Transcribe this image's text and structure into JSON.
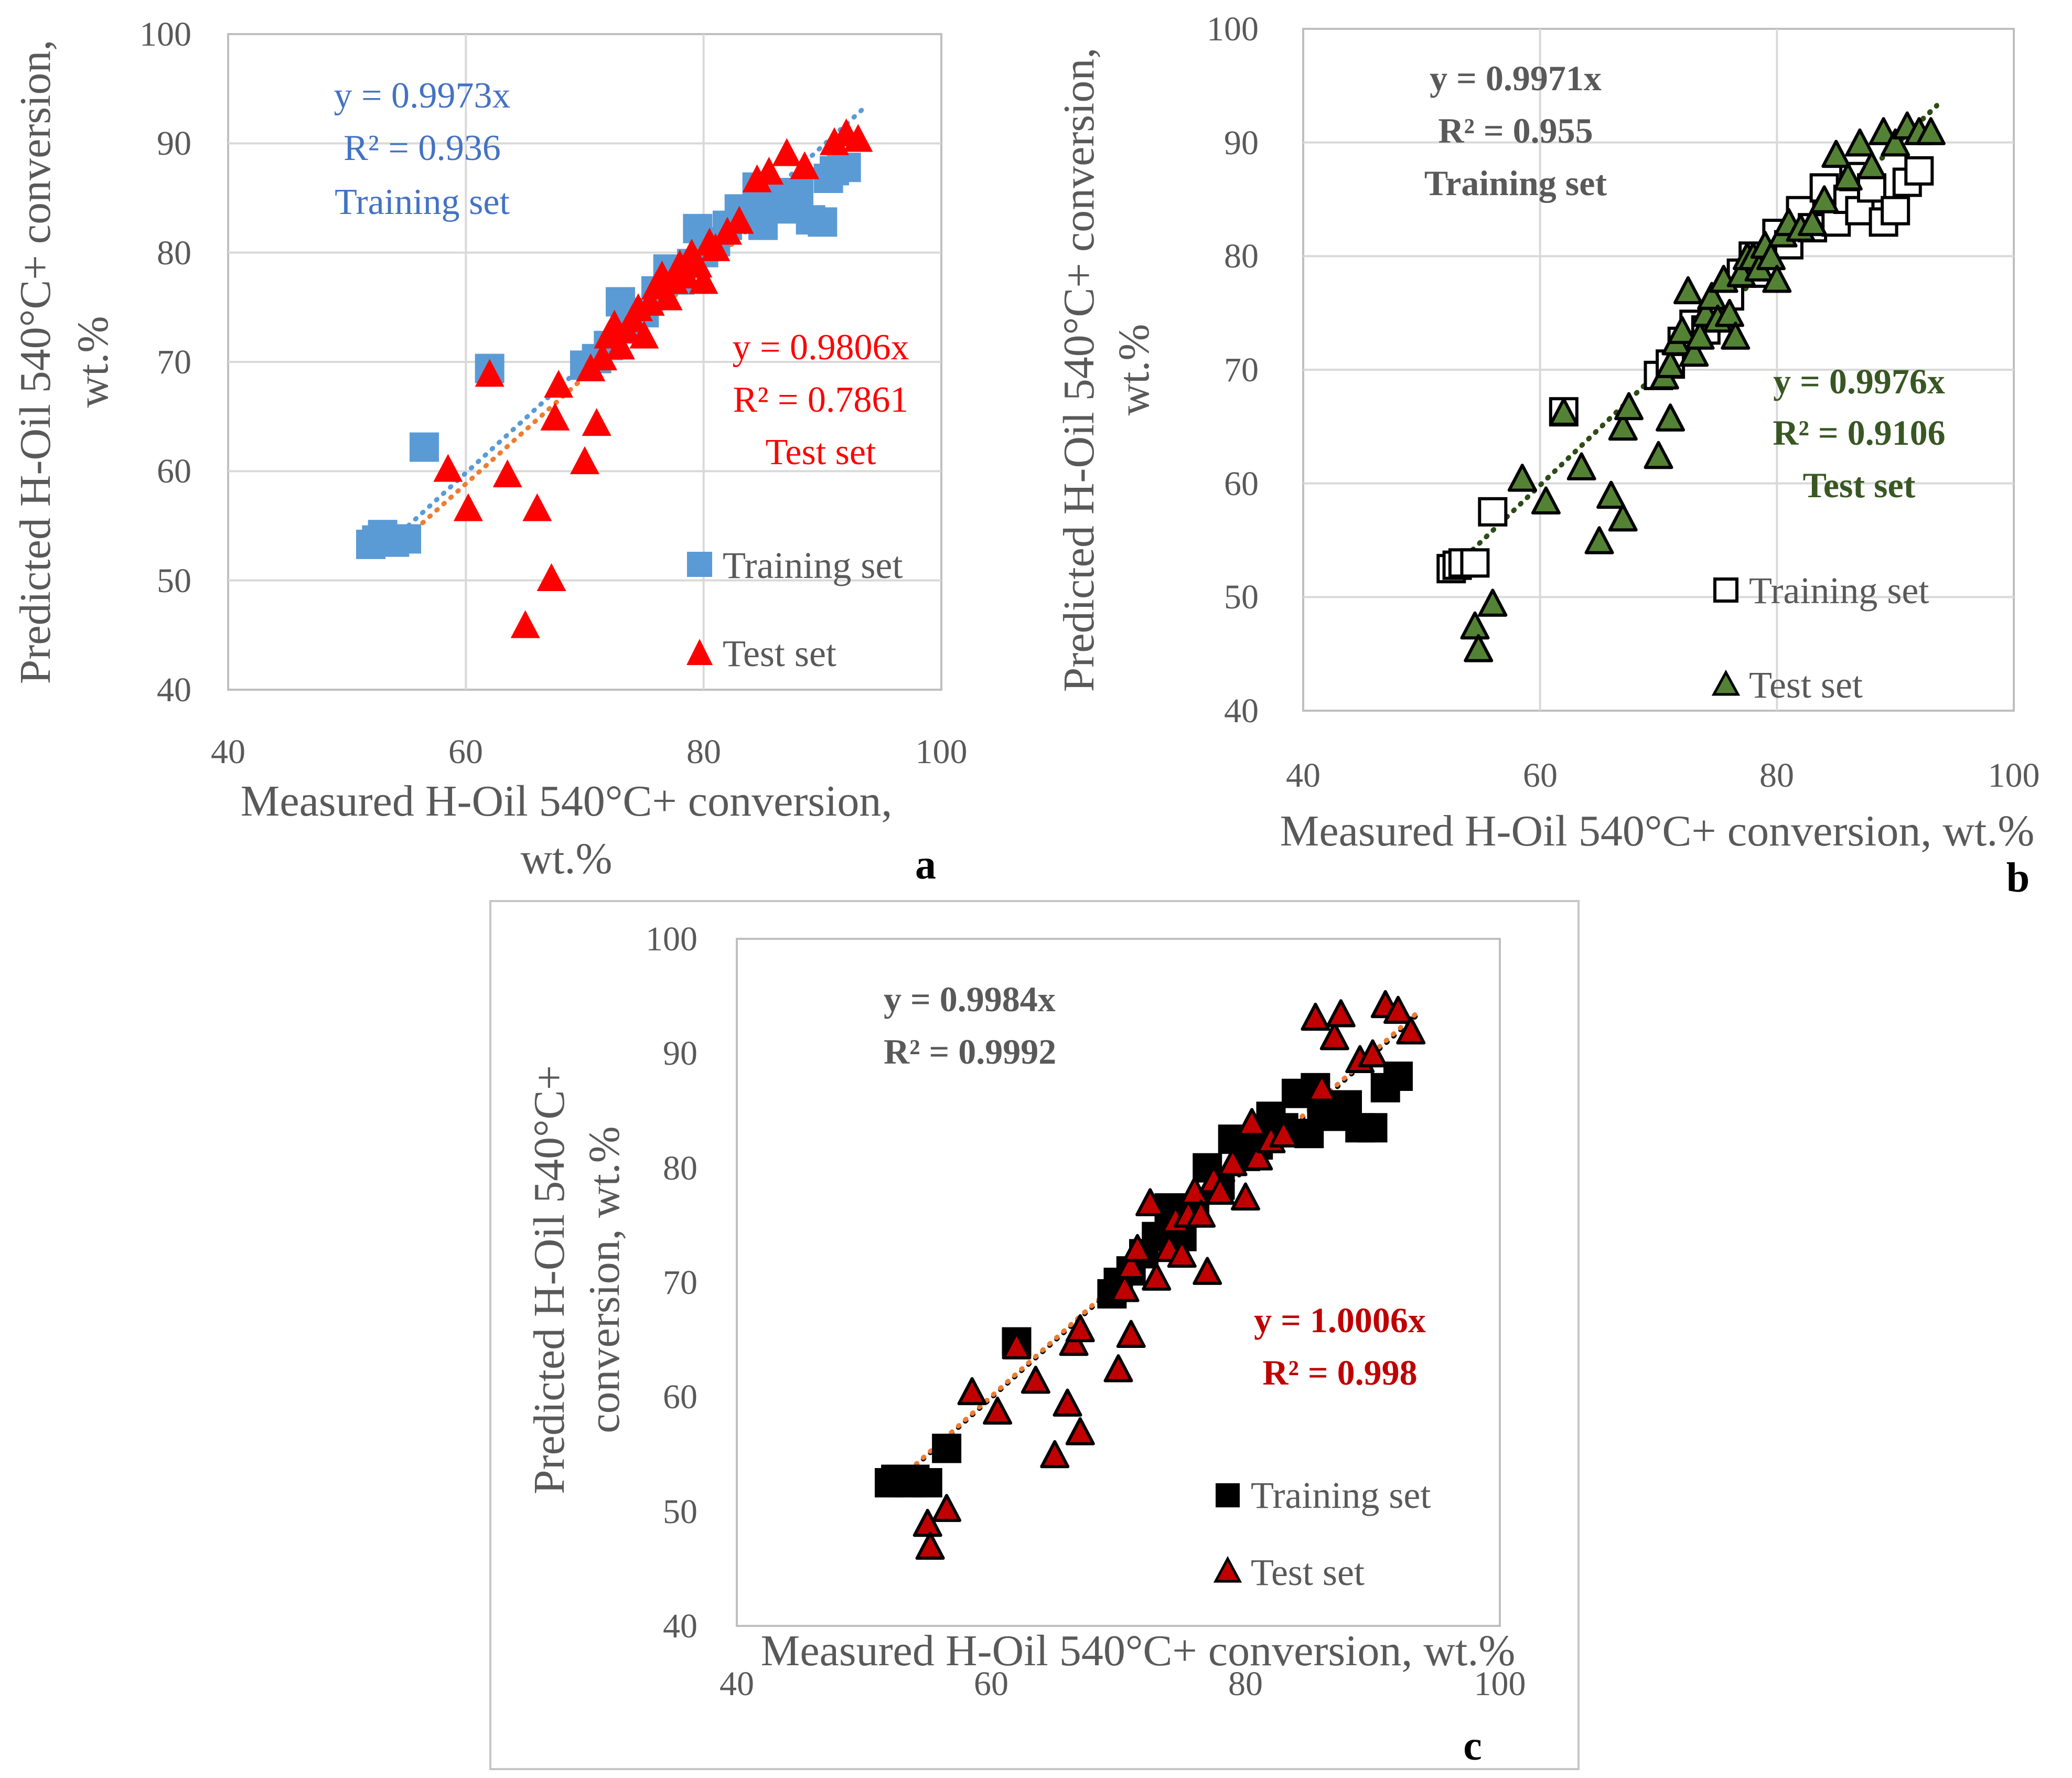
{
  "figure": {
    "panel_labels": [
      "a",
      "b",
      "c"
    ]
  },
  "chart_data": [
    {
      "type": "scatter",
      "panel": "a",
      "xlabel_lines": [
        "Measured H-Oil 540°C+ conversion,",
        "wt.%"
      ],
      "ylabel_lines": [
        "Predicted H-Oil 540°C+ conversion,",
        "wt.%"
      ],
      "xlim": [
        40,
        100
      ],
      "ylim": [
        40,
        100
      ],
      "xticks": [
        "40",
        "60",
        "80",
        "100"
      ],
      "yticks": [
        "40",
        "50",
        "60",
        "70",
        "80",
        "90",
        "100"
      ],
      "grid": true,
      "legend_position": "bottom-right",
      "series": [
        {
          "name": "Training set",
          "marker": "square",
          "color": "#5b9bd5",
          "edge": "none",
          "trend_color": "#5b9bd5",
          "points": [
            [
              52,
              53.3
            ],
            [
              52.5,
              53.7
            ],
            [
              53,
              54.2
            ],
            [
              53.5,
              53.8
            ],
            [
              54,
              53.5
            ],
            [
              55,
              53.8
            ],
            [
              56.5,
              62.2
            ],
            [
              62,
              69.4
            ],
            [
              70,
              69.7
            ],
            [
              71,
              70.3
            ],
            [
              72,
              71.5
            ],
            [
              73,
              75.5
            ],
            [
              74,
              73
            ],
            [
              75,
              74.5
            ],
            [
              76,
              76.5
            ],
            [
              77,
              78.5
            ],
            [
              78,
              77.5
            ],
            [
              79,
              79
            ],
            [
              79.5,
              82.2
            ],
            [
              80,
              80
            ],
            [
              81,
              81
            ],
            [
              82,
              82.5
            ],
            [
              83,
              84
            ],
            [
              84,
              83.5
            ],
            [
              84.5,
              86
            ],
            [
              85,
              82.5
            ],
            [
              85.5,
              84.5
            ],
            [
              86,
              85.5
            ],
            [
              87,
              84
            ],
            [
              88,
              85.5
            ],
            [
              89,
              83
            ],
            [
              90,
              82.8
            ],
            [
              90.5,
              86.8
            ],
            [
              91,
              87.5
            ],
            [
              92,
              87.8
            ]
          ],
          "equation": "y = 0.9973x",
          "r2": "R² = 0.936",
          "label": "Training set"
        },
        {
          "name": "Test set",
          "marker": "triangle",
          "color": "#ff0000",
          "edge": "none",
          "trend_color": "#ed7d31",
          "points": [
            [
              58.5,
              60.3
            ],
            [
              60.2,
              56.7
            ],
            [
              62,
              69
            ],
            [
              63.5,
              59.8
            ],
            [
              65,
              46
            ],
            [
              66,
              56.7
            ],
            [
              67.2,
              50.3
            ],
            [
              67.5,
              65
            ],
            [
              67.8,
              68
            ],
            [
              70,
              61
            ],
            [
              71,
              64.5
            ],
            [
              70.5,
              69.5
            ],
            [
              71.5,
              70.5
            ],
            [
              72,
              72.5
            ],
            [
              72.5,
              73.5
            ],
            [
              73,
              71.5
            ],
            [
              73.5,
              73
            ],
            [
              74,
              74
            ],
            [
              74.5,
              75
            ],
            [
              75,
              72.5
            ],
            [
              75.5,
              75.5
            ],
            [
              76,
              77
            ],
            [
              76.5,
              78
            ],
            [
              77,
              76
            ],
            [
              77.5,
              77.5
            ],
            [
              78,
              79
            ],
            [
              78.5,
              78
            ],
            [
              79,
              80
            ],
            [
              79.5,
              79
            ],
            [
              80,
              77.5
            ],
            [
              80.5,
              81
            ],
            [
              81,
              80.5
            ],
            [
              82,
              82
            ],
            [
              83,
              83
            ],
            [
              84.5,
              86.8
            ],
            [
              85.5,
              87.5
            ],
            [
              87,
              89.2
            ],
            [
              88.5,
              88
            ],
            [
              91,
              90.2
            ],
            [
              92,
              91
            ],
            [
              93,
              90.5
            ]
          ],
          "equation": "y = 0.9806x",
          "r2": "R² = 0.7861",
          "label": "Test set"
        }
      ]
    },
    {
      "type": "scatter",
      "panel": "b",
      "xlabel_lines": [
        "Measured H-Oil 540°C+ conversion, wt.%"
      ],
      "ylabel_lines": [
        "Predicted H-Oil 540°C+ conversion,",
        "wt.%"
      ],
      "xlim": [
        40,
        100
      ],
      "ylim": [
        40,
        100
      ],
      "xticks": [
        "40",
        "60",
        "80",
        "100"
      ],
      "yticks": [
        "40",
        "50",
        "60",
        "70",
        "80",
        "90",
        "100"
      ],
      "grid": true,
      "legend_position": "bottom-right",
      "series": [
        {
          "name": "Training set",
          "marker": "square",
          "color": "#ffffff",
          "edge": "#000000",
          "trend_color": "#000000",
          "points": [
            [
              52.5,
              52.5
            ],
            [
              53,
              52.8
            ],
            [
              53.5,
              53
            ],
            [
              54.5,
              53
            ],
            [
              56,
              57.5
            ],
            [
              62,
              66.3
            ],
            [
              70,
              69.5
            ],
            [
              71,
              70.5
            ],
            [
              72,
              72.5
            ],
            [
              73,
              74
            ],
            [
              74,
              73.5
            ],
            [
              75,
              75
            ],
            [
              76,
              76.5
            ],
            [
              77,
              78.5
            ],
            [
              78,
              80
            ],
            [
              79,
              78.5
            ],
            [
              80,
              82
            ],
            [
              81,
              81
            ],
            [
              82,
              84
            ],
            [
              83,
              82.5
            ],
            [
              84,
              86
            ],
            [
              85,
              83
            ],
            [
              86,
              85
            ],
            [
              86.5,
              87
            ],
            [
              87,
              84
            ],
            [
              88,
              86
            ],
            [
              89,
              83
            ],
            [
              90,
              84
            ],
            [
              91,
              86.5
            ],
            [
              92,
              87.5
            ]
          ],
          "equation": "y = 0.9971x",
          "r2": "R² = 0.955",
          "label": "Training set"
        },
        {
          "name": "Test set",
          "marker": "triangle",
          "color": "#548235",
          "edge": "#000000",
          "trend_color": "#2e4d14",
          "points": [
            [
              54.5,
              47.5
            ],
            [
              54.8,
              45.5
            ],
            [
              56,
              49.5
            ],
            [
              58.5,
              60.5
            ],
            [
              60.5,
              58.5
            ],
            [
              62,
              66.3
            ],
            [
              63.5,
              61.5
            ],
            [
              65,
              55
            ],
            [
              66,
              59
            ],
            [
              67,
              57
            ],
            [
              67,
              65
            ],
            [
              67.5,
              66.8
            ],
            [
              70,
              62.5
            ],
            [
              71,
              65.8
            ],
            [
              70.5,
              69.5
            ],
            [
              71,
              70.5
            ],
            [
              71.5,
              72.5
            ],
            [
              72,
              73.5
            ],
            [
              72.5,
              77
            ],
            [
              73,
              71.5
            ],
            [
              73.5,
              73
            ],
            [
              74,
              75
            ],
            [
              74.5,
              76.5
            ],
            [
              75,
              74.5
            ],
            [
              75.5,
              78
            ],
            [
              76,
              75
            ],
            [
              76.5,
              73
            ],
            [
              77,
              78.5
            ],
            [
              77.5,
              80
            ],
            [
              78,
              80
            ],
            [
              78.5,
              79
            ],
            [
              79,
              81
            ],
            [
              79.5,
              80
            ],
            [
              80,
              78
            ],
            [
              80.5,
              82
            ],
            [
              81,
              83
            ],
            [
              82,
              82.5
            ],
            [
              83,
              83
            ],
            [
              84,
              85
            ],
            [
              85,
              89
            ],
            [
              86,
              87
            ],
            [
              87,
              90
            ],
            [
              88,
              88
            ],
            [
              89,
              91
            ],
            [
              90,
              90
            ],
            [
              91,
              91.5
            ],
            [
              92,
              91
            ],
            [
              93,
              91
            ]
          ],
          "equation": "y = 0.9976x",
          "r2": "R² = 0.9106",
          "label": "Test set"
        }
      ]
    },
    {
      "type": "scatter",
      "panel": "c",
      "xlabel_lines": [
        "Measured H-Oil 540°C+ conversion, wt.%"
      ],
      "ylabel_lines": [
        "Predicted H-Oil 540°C+",
        "conversion, wt.%"
      ],
      "xlim": [
        40,
        100
      ],
      "ylim": [
        40,
        100
      ],
      "xticks": [
        "40",
        "60",
        "80",
        "100"
      ],
      "yticks": [
        "40",
        "50",
        "60",
        "70",
        "80",
        "90",
        "100"
      ],
      "grid": false,
      "legend_position": "bottom-right",
      "series": [
        {
          "name": "Training set",
          "marker": "square",
          "color": "#000000",
          "edge": "#000000",
          "trend_color": "#000000",
          "points": [
            [
              52,
              52.5
            ],
            [
              52.5,
              52.8
            ],
            [
              53,
              52.8
            ],
            [
              53.5,
              52.5
            ],
            [
              54,
              52.8
            ],
            [
              55,
              52.5
            ],
            [
              56.5,
              55.5
            ],
            [
              62,
              64.8
            ],
            [
              69.5,
              69
            ],
            [
              70,
              70
            ],
            [
              71,
              71
            ],
            [
              72,
              72.5
            ],
            [
              73,
              74
            ],
            [
              74,
              76.5
            ],
            [
              75,
              74
            ],
            [
              76,
              76.5
            ],
            [
              77,
              80
            ],
            [
              78,
              78.5
            ],
            [
              79,
              82.5
            ],
            [
              80,
              81
            ],
            [
              81,
              82
            ],
            [
              82,
              84.5
            ],
            [
              83,
              83.5
            ],
            [
              84,
              86.5
            ],
            [
              85,
              83
            ],
            [
              85.5,
              87
            ],
            [
              86,
              85.5
            ],
            [
              87,
              84.5
            ],
            [
              88,
              85.5
            ],
            [
              89,
              83.5
            ],
            [
              90,
              83.5
            ],
            [
              91,
              87
            ],
            [
              92,
              88
            ]
          ],
          "equation": "y = 0.9984x",
          "r2": "R² = 0.9992",
          "label": "Training set"
        },
        {
          "name": "Test set",
          "marker": "triangle",
          "color": "#c00000",
          "edge": "#000000",
          "trend_color": "#ed7d31",
          "points": [
            [
              55,
              49
            ],
            [
              55.2,
              47
            ],
            [
              56.5,
              50.3
            ],
            [
              58.5,
              60.5
            ],
            [
              60.5,
              58.8
            ],
            [
              62,
              64.5
            ],
            [
              63.5,
              61.5
            ],
            [
              65,
              55
            ],
            [
              66,
              59.5
            ],
            [
              67,
              57
            ],
            [
              66.5,
              64.8
            ],
            [
              67,
              66
            ],
            [
              70,
              62.5
            ],
            [
              71,
              65.5
            ],
            [
              70.5,
              69.5
            ],
            [
              71,
              71.5
            ],
            [
              71.5,
              73
            ],
            [
              72.5,
              77
            ],
            [
              73,
              70.5
            ],
            [
              74,
              73
            ],
            [
              74.5,
              75.5
            ],
            [
              75,
              72.5
            ],
            [
              75.5,
              76
            ],
            [
              76,
              78
            ],
            [
              76.5,
              76
            ],
            [
              77,
              71
            ],
            [
              77.5,
              79
            ],
            [
              78,
              78
            ],
            [
              79,
              80.5
            ],
            [
              80,
              77.5
            ],
            [
              80.5,
              84
            ],
            [
              81,
              81
            ],
            [
              82,
              82.5
            ],
            [
              83,
              83
            ],
            [
              85.5,
              93.2
            ],
            [
              86,
              87
            ],
            [
              87,
              91.5
            ],
            [
              87.5,
              93.5
            ],
            [
              89,
              89.5
            ],
            [
              90,
              90
            ],
            [
              91,
              94.3
            ],
            [
              92,
              93.8
            ],
            [
              93,
              92
            ]
          ],
          "equation": "y = 1.0006x",
          "r2": "R² = 0.998",
          "label": "Test set"
        }
      ]
    }
  ]
}
